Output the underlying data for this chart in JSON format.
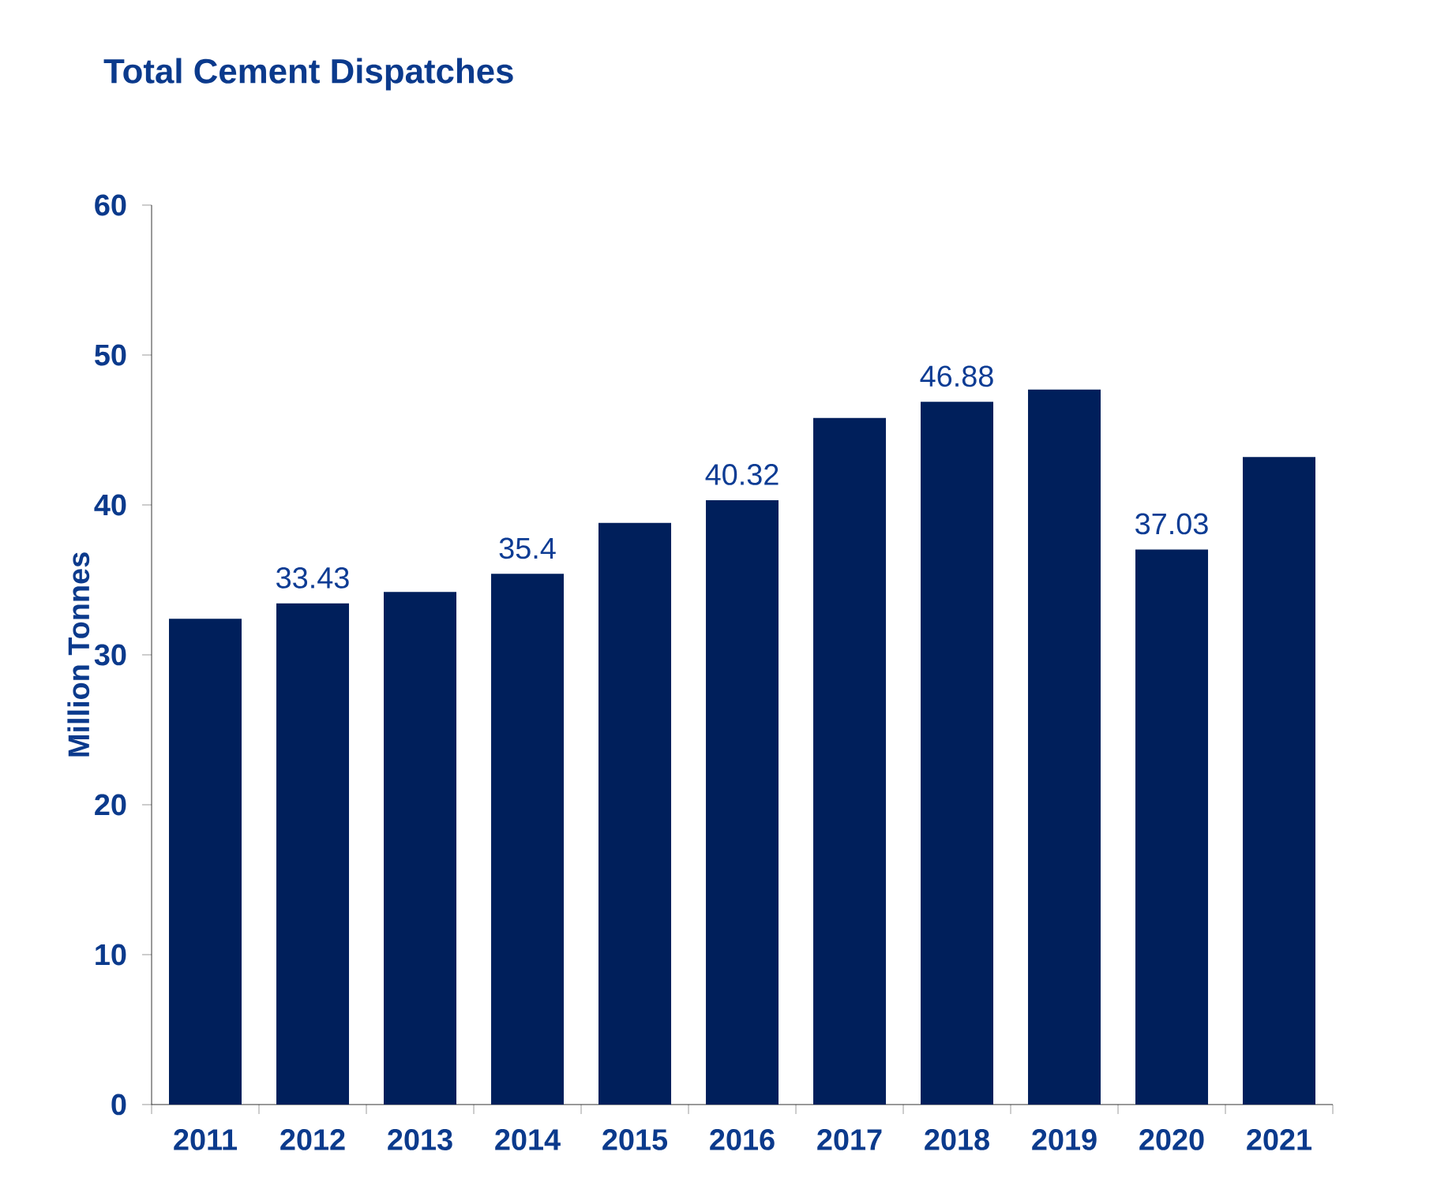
{
  "chart_data": {
    "type": "bar",
    "title": "Total Cement Dispatches",
    "ylabel": "Million Tonnes",
    "categories": [
      "2011",
      "2012",
      "2013",
      "2014",
      "2015",
      "2016",
      "2017",
      "2018",
      "2019",
      "2020",
      "2021"
    ],
    "values": [
      32.4,
      33.43,
      34.2,
      35.4,
      38.8,
      40.32,
      45.8,
      46.88,
      47.7,
      37.03,
      43.2
    ],
    "value_labels": [
      null,
      "33.43",
      null,
      "35.4",
      null,
      "40.32",
      null,
      "46.88",
      null,
      "37.03",
      null
    ],
    "color": "#001f5b",
    "ylim": [
      0,
      60
    ],
    "yticks": [
      0,
      10,
      20,
      30,
      40,
      50,
      60
    ]
  }
}
